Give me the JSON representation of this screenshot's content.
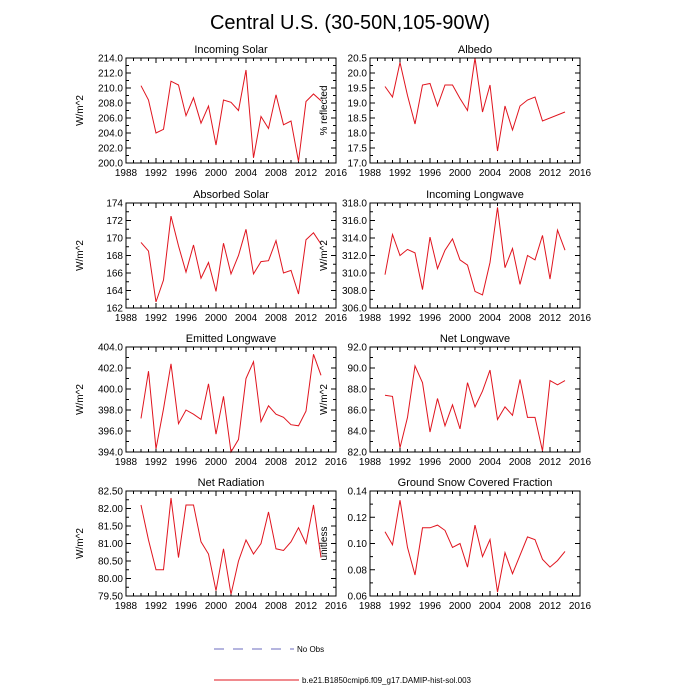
{
  "figure": {
    "title": "Central U.S. (30-50N,105-90W)",
    "legend": [
      {
        "label": "No Obs",
        "style": "dashed",
        "color": "#6b6bbf"
      },
      {
        "label": "b.e21.B1850cmip6.f09_g17.DAMIP-hist-sol.003",
        "style": "solid",
        "color": "#e0141e"
      }
    ]
  },
  "chart_data": [
    {
      "type": "line",
      "title": "Incoming Solar",
      "xlabel": "",
      "ylabel": "W/m^2",
      "xlim": [
        1988,
        2016
      ],
      "ylim": [
        200,
        214
      ],
      "yticks": [
        200,
        202,
        204,
        206,
        208,
        210,
        212,
        214
      ],
      "ytick_decimals": 1,
      "xticks": [
        1988,
        1992,
        1996,
        2000,
        2004,
        2008,
        2012,
        2016
      ],
      "series": [
        {
          "color": "#e0141e",
          "x": [
            1990,
            1991,
            1992,
            1993,
            1994,
            1995,
            1996,
            1997,
            1998,
            1999,
            2000,
            2001,
            2002,
            2003,
            2004,
            2005,
            2006,
            2007,
            2008,
            2009,
            2010,
            2011,
            2012,
            2013,
            2014
          ],
          "y": [
            210.3,
            208.4,
            204.0,
            204.5,
            210.9,
            210.4,
            206.3,
            208.7,
            205.3,
            207.6,
            202.4,
            208.4,
            208.1,
            207.0,
            212.4,
            200.7,
            206.2,
            204.6,
            209.1,
            205.1,
            205.6,
            200.2,
            208.2,
            209.2,
            208.3
          ]
        }
      ]
    },
    {
      "type": "line",
      "title": "Albedo",
      "xlabel": "",
      "ylabel": "% reflected",
      "xlim": [
        1988,
        2016
      ],
      "ylim": [
        17,
        20.5
      ],
      "yticks": [
        17.0,
        17.5,
        18.0,
        18.5,
        19.0,
        19.5,
        20.0,
        20.5
      ],
      "ytick_decimals": 1,
      "xticks": [
        1988,
        1992,
        1996,
        2000,
        2004,
        2008,
        2012,
        2016
      ],
      "series": [
        {
          "color": "#e0141e",
          "x": [
            1990,
            1991,
            1992,
            1993,
            1994,
            1995,
            1996,
            1997,
            1998,
            1999,
            2000,
            2001,
            2002,
            2003,
            2004,
            2005,
            2006,
            2007,
            2008,
            2009,
            2010,
            2011,
            2014
          ],
          "y": [
            19.55,
            19.2,
            20.35,
            19.25,
            18.3,
            19.6,
            19.65,
            18.9,
            19.6,
            19.6,
            19.15,
            18.75,
            20.5,
            18.7,
            19.6,
            17.4,
            18.9,
            18.1,
            18.9,
            19.1,
            19.2,
            18.4,
            18.7
          ]
        }
      ]
    },
    {
      "type": "line",
      "title": "Absorbed Solar",
      "xlabel": "",
      "ylabel": "W/m^2",
      "xlim": [
        1988,
        2016
      ],
      "ylim": [
        162,
        174
      ],
      "yticks": [
        162,
        164,
        166,
        168,
        170,
        172,
        174
      ],
      "ytick_decimals": 0,
      "xticks": [
        1988,
        1992,
        1996,
        2000,
        2004,
        2008,
        2012,
        2016
      ],
      "series": [
        {
          "color": "#e0141e",
          "x": [
            1990,
            1991,
            1992,
            1993,
            1994,
            1995,
            1996,
            1997,
            1998,
            1999,
            2000,
            2001,
            2002,
            2003,
            2004,
            2005,
            2006,
            2007,
            2008,
            2009,
            2010,
            2011,
            2012,
            2013,
            2014
          ],
          "y": [
            169.5,
            168.5,
            162.7,
            165.2,
            172.5,
            169.1,
            166.1,
            169.2,
            165.4,
            167.2,
            163.9,
            169.4,
            165.9,
            168.0,
            171.0,
            165.9,
            167.3,
            167.4,
            169.7,
            166.0,
            166.3,
            163.6,
            169.8,
            170.6,
            169.3
          ]
        }
      ]
    },
    {
      "type": "line",
      "title": "Incoming Longwave",
      "xlabel": "",
      "ylabel": "W/m^2",
      "xlim": [
        1988,
        2016
      ],
      "ylim": [
        306,
        318
      ],
      "yticks": [
        306,
        308,
        310,
        312,
        314,
        316,
        318
      ],
      "ytick_decimals": 1,
      "xticks": [
        1988,
        1992,
        1996,
        2000,
        2004,
        2008,
        2012,
        2016
      ],
      "series": [
        {
          "color": "#e0141e",
          "x": [
            1990,
            1991,
            1992,
            1993,
            1994,
            1995,
            1996,
            1997,
            1998,
            1999,
            2000,
            2001,
            2002,
            2003,
            2004,
            2005,
            2006,
            2007,
            2008,
            2009,
            2010,
            2011,
            2012,
            2013,
            2014
          ],
          "y": [
            309.8,
            314.4,
            312.0,
            312.7,
            312.3,
            308.1,
            314.1,
            310.5,
            312.6,
            313.9,
            311.5,
            310.9,
            307.9,
            307.5,
            311.2,
            317.5,
            310.6,
            312.8,
            308.7,
            312.0,
            311.5,
            314.3,
            309.3,
            314.9,
            312.6
          ]
        }
      ]
    },
    {
      "type": "line",
      "title": "Emitted Longwave",
      "xlabel": "",
      "ylabel": "W/m^2",
      "xlim": [
        1988,
        2016
      ],
      "ylim": [
        394,
        404
      ],
      "yticks": [
        394,
        396,
        398,
        400,
        402,
        404
      ],
      "ytick_decimals": 1,
      "xticks": [
        1988,
        1992,
        1996,
        2000,
        2004,
        2008,
        2012,
        2016
      ],
      "series": [
        {
          "color": "#e0141e",
          "x": [
            1990,
            1991,
            1992,
            1993,
            1994,
            1995,
            1996,
            1997,
            1998,
            1999,
            2000,
            2001,
            2002,
            2003,
            2004,
            2005,
            2006,
            2007,
            2008,
            2009,
            2010,
            2011,
            2012,
            2013,
            2014
          ],
          "y": [
            397.2,
            401.7,
            394.3,
            398.1,
            402.4,
            396.7,
            398.0,
            397.6,
            397.1,
            400.5,
            395.7,
            399.3,
            394.0,
            395.2,
            401.0,
            402.6,
            396.9,
            398.4,
            397.6,
            397.3,
            396.6,
            396.5,
            397.9,
            403.3,
            401.3
          ]
        }
      ]
    },
    {
      "type": "line",
      "title": "Net Longwave",
      "xlabel": "",
      "ylabel": "W/m^2",
      "xlim": [
        1988,
        2016
      ],
      "ylim": [
        82,
        92
      ],
      "yticks": [
        82,
        84,
        86,
        88,
        90,
        92
      ],
      "ytick_decimals": 1,
      "xticks": [
        1988,
        1992,
        1996,
        2000,
        2004,
        2008,
        2012,
        2016
      ],
      "series": [
        {
          "color": "#e0141e",
          "x": [
            1990,
            1991,
            1992,
            1993,
            1994,
            1995,
            1996,
            1997,
            1998,
            1999,
            2000,
            2001,
            2002,
            2003,
            2004,
            2005,
            2006,
            2007,
            2008,
            2009,
            2010,
            2011,
            2012,
            2013,
            2014
          ],
          "y": [
            87.4,
            87.3,
            82.4,
            85.3,
            90.2,
            88.6,
            83.9,
            87.1,
            84.5,
            86.5,
            84.2,
            88.6,
            86.3,
            87.8,
            89.8,
            85.1,
            86.3,
            85.5,
            88.9,
            85.3,
            85.3,
            82.1,
            88.8,
            88.4,
            88.8
          ]
        }
      ]
    },
    {
      "type": "line",
      "title": "Net Radiation",
      "xlabel": "",
      "ylabel": "W/m^2",
      "xlim": [
        1988,
        2016
      ],
      "ylim": [
        79.5,
        82.5
      ],
      "yticks": [
        79.5,
        80.0,
        80.5,
        81.0,
        81.5,
        82.0,
        82.5
      ],
      "ytick_decimals": 2,
      "xticks": [
        1988,
        1992,
        1996,
        2000,
        2004,
        2008,
        2012,
        2016
      ],
      "series": [
        {
          "color": "#e0141e",
          "x": [
            1990,
            1991,
            1992,
            1993,
            1994,
            1995,
            1996,
            1997,
            1998,
            1999,
            2000,
            2001,
            2002,
            2003,
            2004,
            2005,
            2006,
            2007,
            2008,
            2009,
            2010,
            2011,
            2012,
            2013,
            2014
          ],
          "y": [
            82.1,
            81.1,
            80.25,
            80.25,
            82.3,
            80.6,
            82.1,
            82.1,
            81.05,
            80.7,
            79.65,
            80.85,
            79.55,
            80.5,
            81.1,
            80.7,
            81.0,
            81.9,
            80.85,
            80.8,
            81.05,
            81.45,
            81.0,
            82.1,
            80.6
          ]
        }
      ]
    },
    {
      "type": "line",
      "title": "Ground Snow Covered Fraction",
      "xlabel": "",
      "ylabel": "unitless",
      "xlim": [
        1988,
        2016
      ],
      "ylim": [
        0.06,
        0.14
      ],
      "yticks": [
        0.06,
        0.08,
        0.1,
        0.12,
        0.14
      ],
      "ytick_decimals": 2,
      "xticks": [
        1988,
        1992,
        1996,
        2000,
        2004,
        2008,
        2012,
        2016
      ],
      "series": [
        {
          "color": "#e0141e",
          "x": [
            1990,
            1991,
            1992,
            1993,
            1994,
            1995,
            1996,
            1997,
            1998,
            1999,
            2000,
            2001,
            2002,
            2003,
            2004,
            2005,
            2006,
            2007,
            2008,
            2009,
            2010,
            2011,
            2012,
            2013,
            2014
          ],
          "y": [
            0.109,
            0.099,
            0.133,
            0.097,
            0.076,
            0.112,
            0.112,
            0.114,
            0.11,
            0.097,
            0.1,
            0.082,
            0.114,
            0.09,
            0.103,
            0.063,
            0.093,
            0.077,
            0.091,
            0.105,
            0.103,
            0.088,
            0.082,
            0.087,
            0.094
          ]
        }
      ]
    }
  ]
}
